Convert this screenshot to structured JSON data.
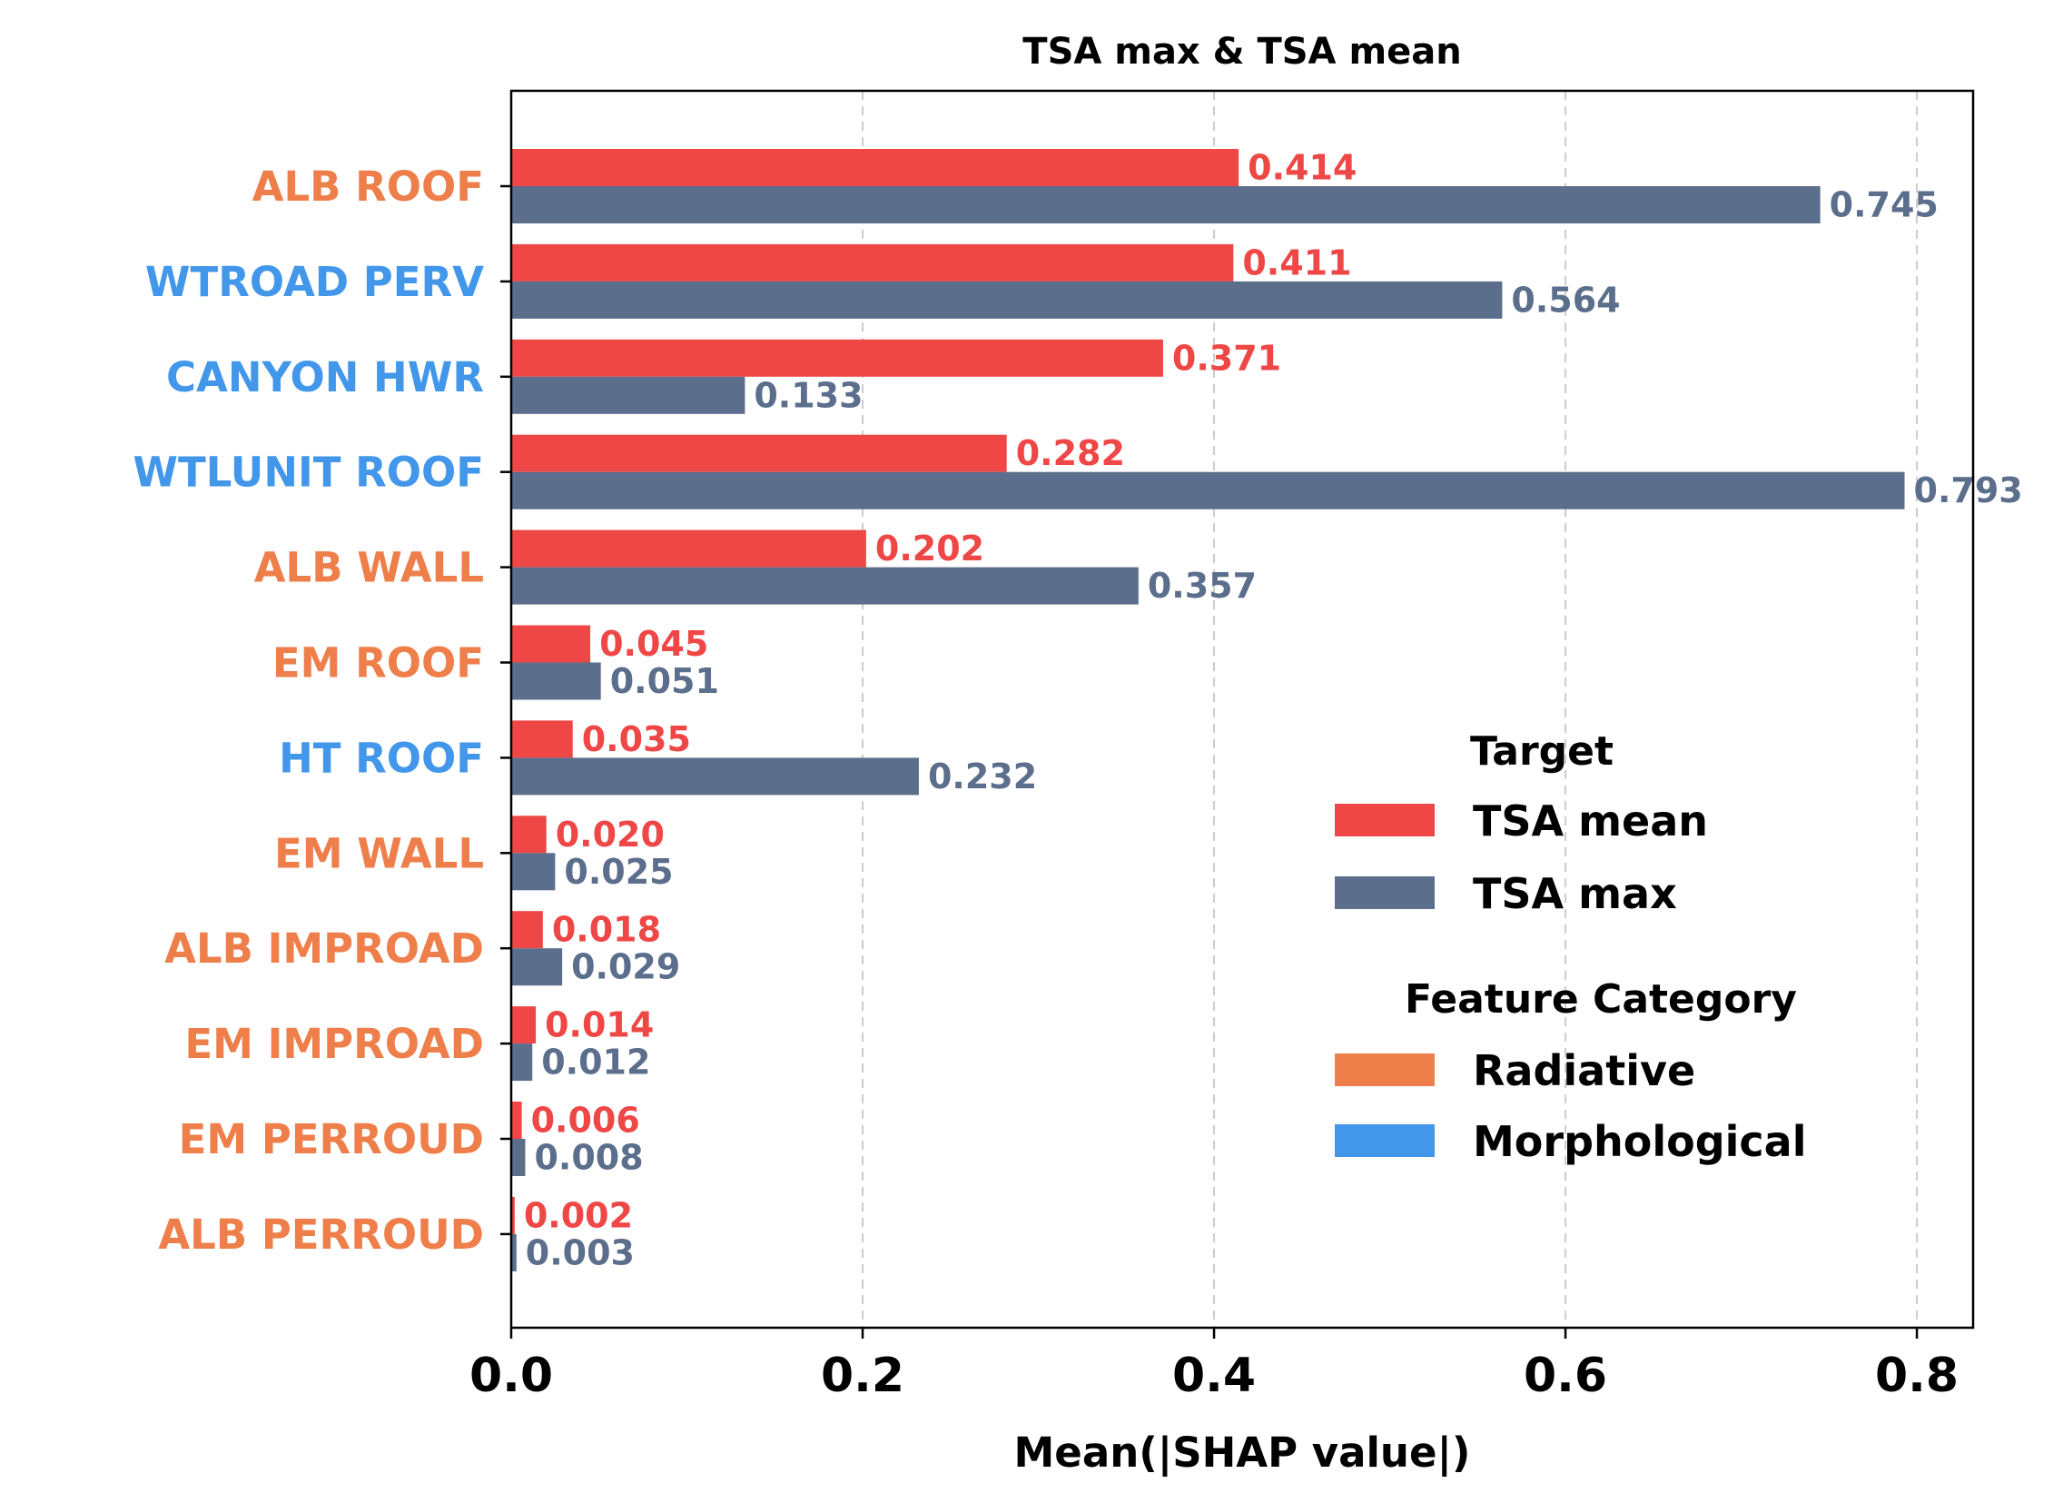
{
  "chart_data": {
    "type": "bar",
    "orientation": "horizontal",
    "title": "TSA max & TSA mean",
    "xlabel": "Mean(|SHAP value|)",
    "xlim": [
      0,
      0.832
    ],
    "xticks": [
      "0.0",
      "0.2",
      "0.4",
      "0.6",
      "0.8"
    ],
    "grid": "vertical dashed",
    "categories": [
      "ALB ROOF",
      "WTROAD PERV",
      "CANYON HWR",
      "WTLUNIT ROOF",
      "ALB WALL",
      "EM ROOF",
      "HT ROOF",
      "EM WALL",
      "ALB IMPROAD",
      "EM IMPROAD",
      "EM PERROUD",
      "ALB PERROUD"
    ],
    "category_type": [
      "Radiative",
      "Morphological",
      "Morphological",
      "Morphological",
      "Radiative",
      "Radiative",
      "Morphological",
      "Radiative",
      "Radiative",
      "Radiative",
      "Radiative",
      "Radiative"
    ],
    "series": [
      {
        "name": "TSA mean",
        "color": "#ef4646",
        "values": [
          0.414,
          0.411,
          0.371,
          0.282,
          0.202,
          0.045,
          0.035,
          0.02,
          0.018,
          0.014,
          0.006,
          0.002
        ],
        "labels": [
          "0.414",
          "0.411",
          "0.371",
          "0.282",
          "0.202",
          "0.045",
          "0.035",
          "0.020",
          "0.018",
          "0.014",
          "0.006",
          "0.002"
        ]
      },
      {
        "name": "TSA max",
        "color": "#5b6e8b",
        "values": [
          0.745,
          0.564,
          0.133,
          0.793,
          0.357,
          0.051,
          0.232,
          0.025,
          0.029,
          0.012,
          0.008,
          0.003
        ],
        "labels": [
          "0.745",
          "0.564",
          "0.133",
          "0.793",
          "0.357",
          "0.051",
          "0.232",
          "0.025",
          "0.029",
          "0.012",
          "0.008",
          "0.003"
        ]
      }
    ],
    "legend": {
      "placement": "center-right",
      "target_title": "Target",
      "target_items": [
        "TSA mean",
        "TSA max"
      ],
      "category_title": "Feature Category",
      "category_items": [
        {
          "name": "Radiative",
          "color": "#ee7e4a"
        },
        {
          "name": "Morphological",
          "color": "#4297ea"
        }
      ]
    },
    "category_colors": {
      "Radiative": "#ee7e4a",
      "Morphological": "#4297ea"
    }
  }
}
